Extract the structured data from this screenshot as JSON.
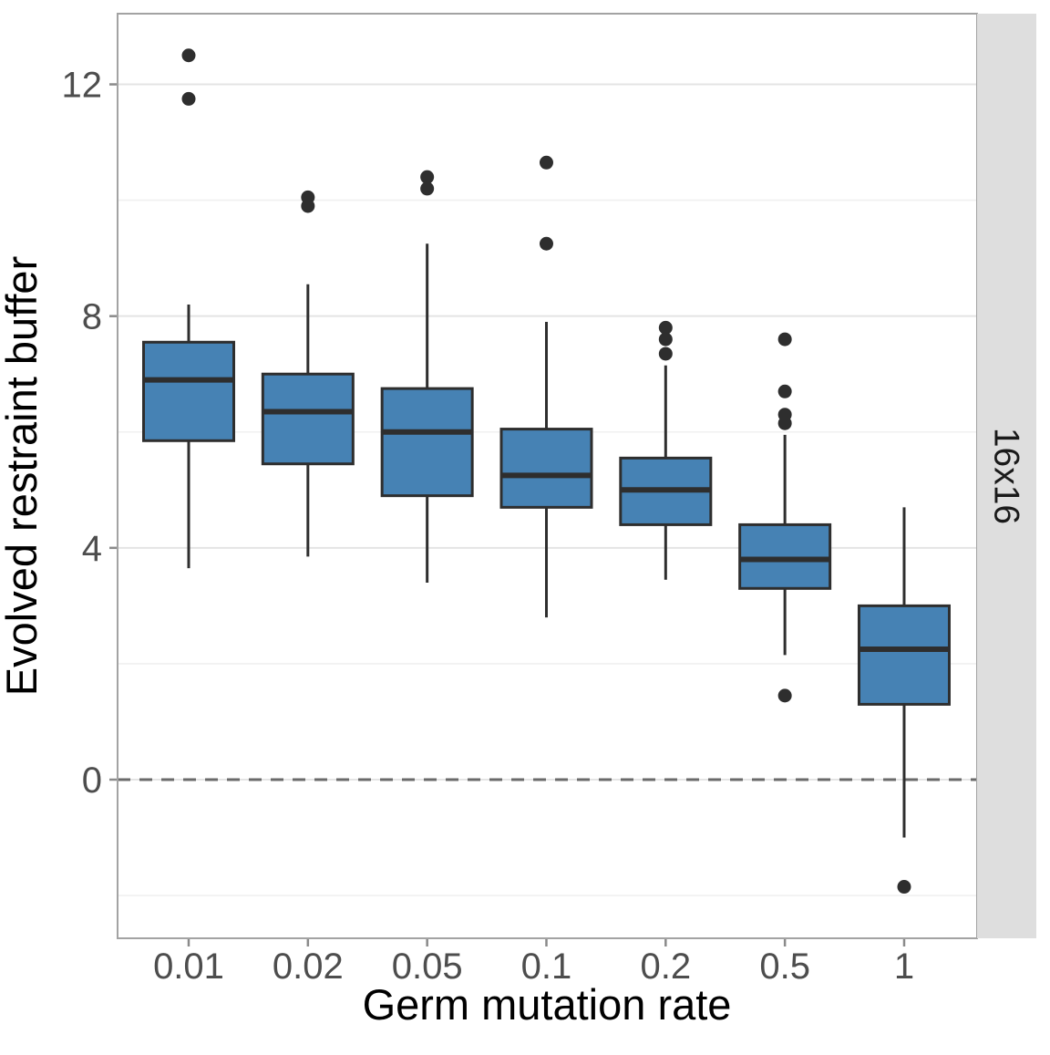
{
  "chart_data": {
    "type": "boxplot",
    "title": "",
    "xlabel": "Germ mutation rate",
    "ylabel": "Evolved restraint buffer",
    "facet_label": "16x16",
    "categories": [
      "0.01",
      "0.02",
      "0.05",
      "0.1",
      "0.2",
      "0.5",
      "1"
    ],
    "y_ticks": [
      0,
      4,
      8,
      12
    ],
    "y_minor_ticks": [
      -2,
      2,
      6,
      10
    ],
    "ylim": [
      -2.7,
      13.2
    ],
    "grid": true,
    "legend": "none",
    "reference_line": {
      "y": 0,
      "style": "dashed"
    },
    "boxes": [
      {
        "category": "0.01",
        "whisker_low": 3.65,
        "q1": 5.85,
        "median": 6.9,
        "q3": 7.55,
        "whisker_high": 8.2,
        "outliers": [
          12.5,
          11.75
        ]
      },
      {
        "category": "0.02",
        "whisker_low": 3.85,
        "q1": 5.45,
        "median": 6.35,
        "q3": 7.0,
        "whisker_high": 8.55,
        "outliers": [
          10.05,
          9.9
        ]
      },
      {
        "category": "0.05",
        "whisker_low": 3.4,
        "q1": 4.9,
        "median": 6.0,
        "q3": 6.75,
        "whisker_high": 9.25,
        "outliers": [
          10.4,
          10.2
        ]
      },
      {
        "category": "0.1",
        "whisker_low": 2.8,
        "q1": 4.7,
        "median": 5.25,
        "q3": 6.05,
        "whisker_high": 7.9,
        "outliers": [
          10.65,
          9.25
        ]
      },
      {
        "category": "0.2",
        "whisker_low": 3.45,
        "q1": 4.4,
        "median": 5.0,
        "q3": 5.55,
        "whisker_high": 7.15,
        "outliers": [
          7.8,
          7.6,
          7.35
        ]
      },
      {
        "category": "0.5",
        "whisker_low": 2.15,
        "q1": 3.3,
        "median": 3.8,
        "q3": 4.4,
        "whisker_high": 5.95,
        "outliers": [
          7.6,
          6.7,
          6.3,
          6.15,
          1.45
        ]
      },
      {
        "category": "1",
        "whisker_low": -1.0,
        "q1": 1.3,
        "median": 2.25,
        "q3": 3.0,
        "whisker_high": 4.7,
        "outliers": [
          -1.85
        ]
      }
    ],
    "colors": {
      "box_fill": "#4682B4",
      "box_stroke": "#2E2E2E",
      "outlier": "#2E2E2E",
      "grid_major": "#E4E4E4",
      "grid_minor": "#F0F0F0",
      "zero_line": "#6A6A6A",
      "panel_border": "#A3A3A3",
      "panel_bg": "#FFFFFF",
      "strip_bg": "#DEDEDE",
      "strip_text": "#1A1A1A",
      "tick_mark": "#8A8A8A",
      "tick_label": "#4D4D4D",
      "axis_title": "#000000"
    }
  }
}
